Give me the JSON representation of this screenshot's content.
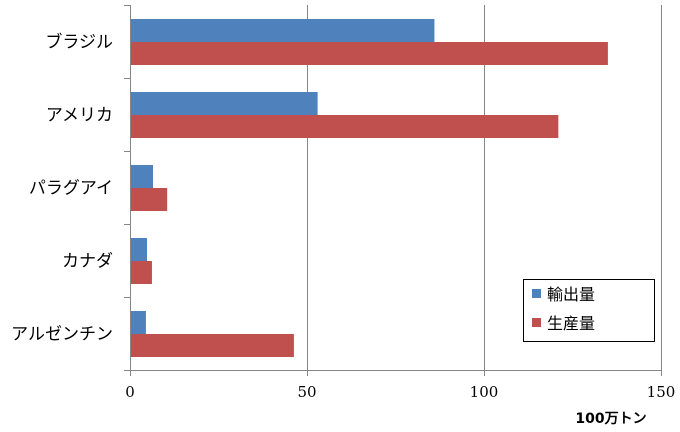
{
  "chart_data": {
    "type": "bar",
    "orientation": "horizontal",
    "categories": [
      "ブラジル",
      "アメリカ",
      "パラグアイ",
      "カナダ",
      "アルゼンチン"
    ],
    "series": [
      {
        "name": "輸出量",
        "color": "#4F81BD",
        "values": [
          86,
          53,
          6.5,
          4.8,
          4.5
        ]
      },
      {
        "name": "生産量",
        "color": "#C0504D",
        "values": [
          135,
          121,
          10.5,
          6.2,
          46.3
        ]
      }
    ],
    "xlabel": "100万トン",
    "xlim": [
      0,
      150
    ],
    "xticks": [
      0,
      50,
      100,
      150
    ],
    "grid": true,
    "legend": {
      "position": "bottom-right"
    }
  }
}
